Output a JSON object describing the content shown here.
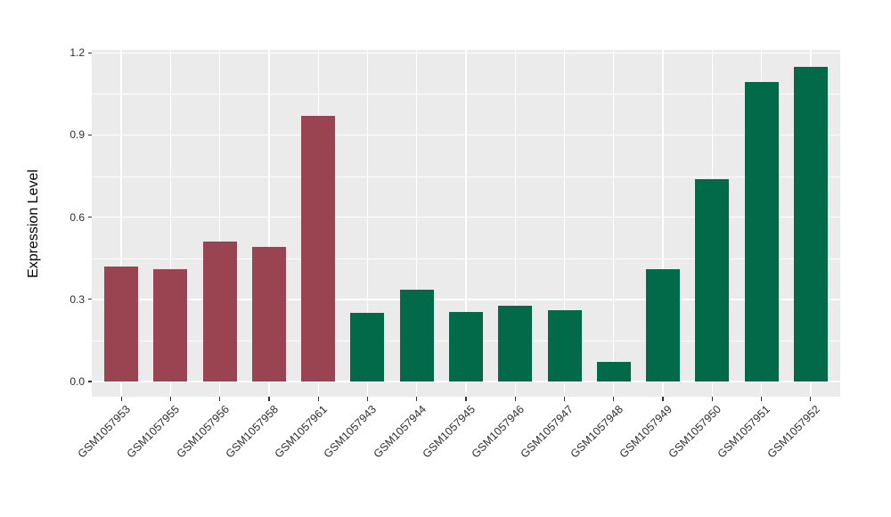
{
  "chart_data": {
    "type": "bar",
    "title": "",
    "xlabel": "",
    "ylabel": "Expression Level",
    "ylim": [
      0,
      1.2
    ],
    "yticks_major": [
      0,
      0.3,
      0.6,
      0.9,
      1.2
    ],
    "yticks_minor": [
      0.15,
      0.45,
      0.75,
      1.05
    ],
    "grid": "on",
    "legend_position": "none",
    "panel_background": "#EBEBEB",
    "gridline_color": "#FFFFFF",
    "axis_text_color": "#2e2e2e",
    "group_colors": {
      "group1": "#9A4451",
      "group2": "#026A48"
    },
    "categories": [
      "GSM1057953",
      "GSM1057955",
      "GSM1057956",
      "GSM1057958",
      "GSM1057961",
      "GSM1057943",
      "GSM1057944",
      "GSM1057945",
      "GSM1057946",
      "GSM1057947",
      "GSM1057948",
      "GSM1057949",
      "GSM1057950",
      "GSM1057951",
      "GSM1057952"
    ],
    "bars": [
      {
        "label": "GSM1057953",
        "value": 0.42,
        "group": "group1"
      },
      {
        "label": "GSM1057955",
        "value": 0.41,
        "group": "group1"
      },
      {
        "label": "GSM1057956",
        "value": 0.51,
        "group": "group1"
      },
      {
        "label": "GSM1057958",
        "value": 0.49,
        "group": "group1"
      },
      {
        "label": "GSM1057961",
        "value": 0.97,
        "group": "group1"
      },
      {
        "label": "GSM1057943",
        "value": 0.25,
        "group": "group2"
      },
      {
        "label": "GSM1057944",
        "value": 0.335,
        "group": "group2"
      },
      {
        "label": "GSM1057945",
        "value": 0.255,
        "group": "group2"
      },
      {
        "label": "GSM1057946",
        "value": 0.275,
        "group": "group2"
      },
      {
        "label": "GSM1057947",
        "value": 0.26,
        "group": "group2"
      },
      {
        "label": "GSM1057948",
        "value": 0.07,
        "group": "group2"
      },
      {
        "label": "GSM1057949",
        "value": 0.41,
        "group": "group2"
      },
      {
        "label": "GSM1057950",
        "value": 0.74,
        "group": "group2"
      },
      {
        "label": "GSM1057951",
        "value": 1.095,
        "group": "group2"
      },
      {
        "label": "GSM1057952",
        "value": 1.15,
        "group": "group2"
      }
    ]
  }
}
